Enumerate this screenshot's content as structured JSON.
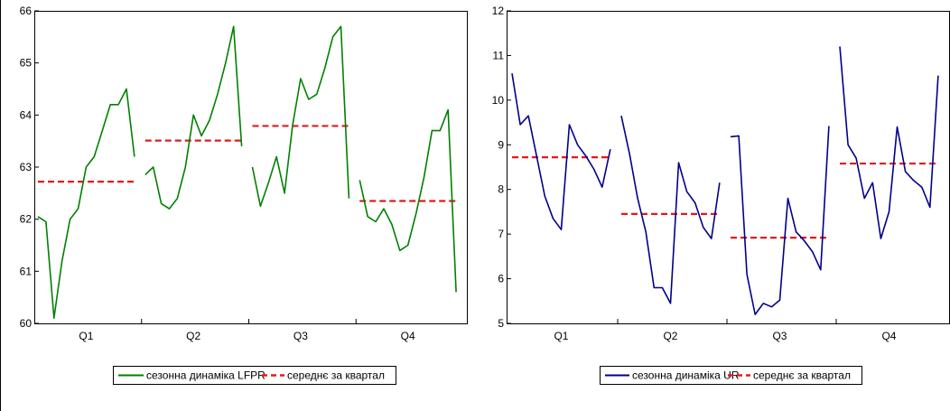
{
  "chart_data": [
    {
      "type": "line",
      "categories": [
        "Q1",
        "Q2",
        "Q3",
        "Q4"
      ],
      "ylim": [
        60,
        66
      ],
      "yticks": [
        60,
        61,
        62,
        63,
        64,
        65,
        66
      ],
      "grid": false,
      "legend_position": "bottom",
      "series": [
        {
          "name": "сезонна динаміка LFPR",
          "color": "#008000",
          "style": "solid",
          "segments": [
            [
              62.05,
              61.95,
              60.1,
              61.2,
              62.0,
              62.2,
              63.0,
              63.2,
              63.7,
              64.2,
              64.2,
              64.5,
              63.2
            ],
            [
              62.85,
              63.0,
              62.3,
              62.2,
              62.4,
              63.0,
              64.0,
              63.6,
              63.9,
              64.4,
              65.0,
              65.7,
              63.4
            ],
            [
              63.0,
              62.25,
              62.7,
              63.2,
              62.5,
              63.8,
              64.7,
              64.3,
              64.4,
              64.9,
              65.5,
              65.7,
              62.4
            ],
            [
              62.75,
              62.05,
              61.95,
              62.2,
              61.9,
              61.4,
              61.5,
              62.1,
              62.8,
              63.7,
              63.7,
              64.1,
              60.6
            ]
          ]
        },
        {
          "name": "середнє за квартал",
          "color": "#e31a1c",
          "style": "dashed",
          "means": [
            62.72,
            63.51,
            63.79,
            62.35
          ]
        }
      ]
    },
    {
      "type": "line",
      "categories": [
        "Q1",
        "Q2",
        "Q3",
        "Q4"
      ],
      "ylim": [
        5,
        12
      ],
      "yticks": [
        5,
        6,
        7,
        8,
        9,
        10,
        11,
        12
      ],
      "grid": false,
      "legend_position": "bottom",
      "series": [
        {
          "name": "сезонна динаміка UR",
          "color": "#00008b",
          "style": "solid",
          "segments": [
            [
              10.6,
              9.45,
              9.65,
              8.75,
              7.85,
              7.35,
              7.1,
              9.45,
              9.0,
              8.75,
              8.45,
              8.05,
              8.9
            ],
            [
              9.65,
              8.8,
              7.8,
              7.05,
              5.8,
              5.8,
              5.45,
              8.6,
              7.95,
              7.7,
              7.15,
              6.9,
              8.15
            ],
            [
              9.18,
              9.2,
              6.1,
              5.2,
              5.45,
              5.37,
              5.52,
              7.8,
              7.05,
              6.85,
              6.6,
              6.2,
              9.42
            ],
            [
              11.2,
              9.0,
              8.7,
              7.8,
              8.15,
              6.9,
              7.5,
              9.4,
              8.4,
              8.2,
              8.05,
              7.6,
              10.55
            ]
          ]
        },
        {
          "name": "середнє за квартал",
          "color": "#e31a1c",
          "style": "dashed",
          "means": [
            8.72,
            7.45,
            6.92,
            8.58
          ]
        }
      ]
    }
  ]
}
